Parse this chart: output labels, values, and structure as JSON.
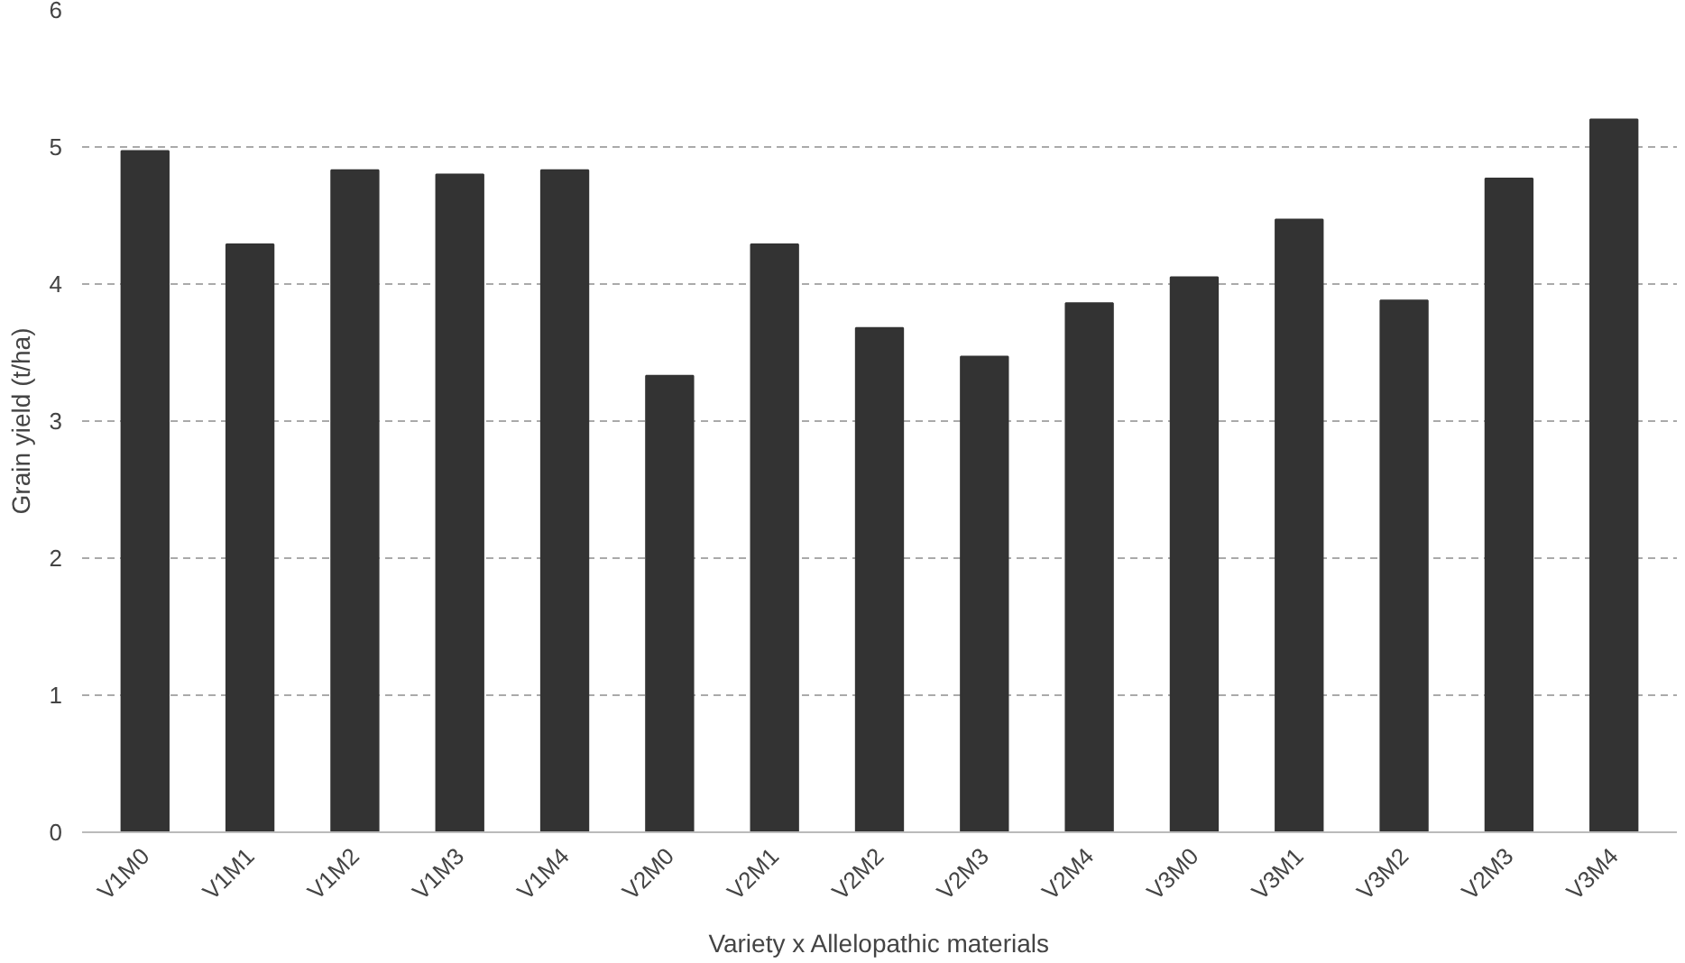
{
  "chart_data": {
    "type": "bar",
    "xlabel": "Variety x Allelopathic materials",
    "ylabel": "Grain yield (t/ha)",
    "categories": [
      "V1M0",
      "V1M1",
      "V1M2",
      "V1M3",
      "V1M4",
      "V2M0",
      "V2M1",
      "V2M2",
      "V2M3",
      "V2M4",
      "V3M0",
      "V3M1",
      "V3M2",
      "V2M3",
      "V3M4"
    ],
    "values": [
      4.97,
      4.29,
      4.83,
      4.8,
      4.83,
      3.33,
      4.29,
      3.68,
      3.47,
      3.86,
      4.05,
      4.47,
      3.88,
      4.77,
      5.2
    ],
    "color": "#333333",
    "ylim": [
      0,
      6
    ],
    "yticks": [
      0,
      1,
      2,
      3,
      4,
      5,
      6
    ],
    "grid": "y"
  }
}
